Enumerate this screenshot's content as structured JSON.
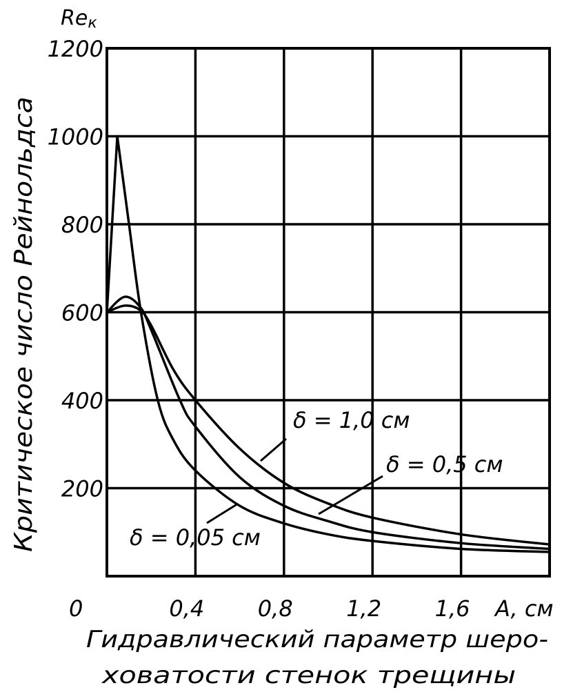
{
  "chart_data": {
    "type": "line",
    "title": "",
    "ylabel": "Критическое число Рейнольдса",
    "ylabel_symbol": "Re",
    "ylabel_subscript": "к",
    "xlabel_lines": [
      "Гидравлический параметр шеро-",
      "ховатости стенок трещины"
    ],
    "xlim": [
      0,
      2.0
    ],
    "ylim": [
      0,
      1200
    ],
    "grid": true,
    "x_ticks": [
      0,
      0.4,
      0.8,
      1.2,
      1.6
    ],
    "x_tick_labels": [
      "0",
      "0,4",
      "0,8",
      "1,2",
      "1,6"
    ],
    "x_axis_unit_label": "A, см",
    "y_ticks": [
      200,
      400,
      600,
      800,
      1000,
      1200
    ],
    "y_tick_labels": [
      "200",
      "400",
      "600",
      "800",
      "1000",
      "1200"
    ],
    "series": [
      {
        "name": "δ = 1,0 см",
        "points": [
          [
            0,
            600
          ],
          [
            0.08,
            615
          ],
          [
            0.15,
            605
          ],
          [
            0.2,
            570
          ],
          [
            0.3,
            470
          ],
          [
            0.4,
            400
          ],
          [
            0.6,
            290
          ],
          [
            0.8,
            212
          ],
          [
            1.0,
            165
          ],
          [
            1.2,
            133
          ],
          [
            1.6,
            95
          ],
          [
            2.0,
            72
          ]
        ]
      },
      {
        "name": "δ = 0,5 см",
        "points": [
          [
            0,
            600
          ],
          [
            0.08,
            635
          ],
          [
            0.15,
            612
          ],
          [
            0.2,
            560
          ],
          [
            0.33,
            400
          ],
          [
            0.4,
            340
          ],
          [
            0.6,
            225
          ],
          [
            0.8,
            160
          ],
          [
            1.0,
            125
          ],
          [
            1.2,
            100
          ],
          [
            1.6,
            75
          ],
          [
            2.0,
            62
          ]
        ]
      },
      {
        "name": "δ = 0,05 см",
        "points": [
          [
            0,
            600
          ],
          [
            0.047,
            1000
          ],
          [
            0.1,
            800
          ],
          [
            0.154,
            600
          ],
          [
            0.23,
            400
          ],
          [
            0.3,
            310
          ],
          [
            0.4,
            240
          ],
          [
            0.6,
            160
          ],
          [
            0.8,
            120
          ],
          [
            1.0,
            95
          ],
          [
            1.2,
            80
          ],
          [
            1.6,
            62
          ],
          [
            2.0,
            55
          ]
        ]
      }
    ]
  }
}
